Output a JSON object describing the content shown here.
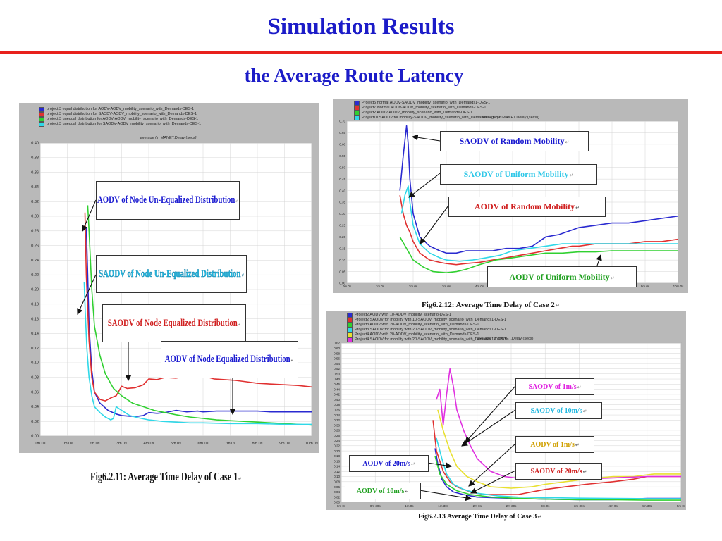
{
  "slide": {
    "title": "Simulation Results",
    "subtitle": "the Average Route Latency",
    "paragraph_mark": "↵"
  },
  "colors": {
    "title": "#1c1cc8",
    "rule": "#e8211d"
  },
  "chart_data": [
    {
      "id": "fig1",
      "type": "line",
      "caption": "Fig6.2.11: Average Time Delay of Case 1",
      "chart_title": "average (in MANET.Delay (secs))",
      "legend": [
        "project 3 equal distribution for AODV-AODV_mobility_scenario_with_Demands-DES-1",
        "project 3 equal distribution for SAODV-AODV_mobility_scenario_with_Demands-DES-1",
        "project 3 unequal distribution for AODV-AODV_mobility_scenario_with_Demands-DES-1",
        "project 3 unequal distribution for SAODV-AODV_mobility_scenario_with_Demands-DES-1"
      ],
      "x_ticks": [
        "0m 0s",
        "1m 0s",
        "2m 0s",
        "3m 0s",
        "4m 0s",
        "5m 0s",
        "6m 0s",
        "7m 0s",
        "8m 0s",
        "9m 0s",
        "10m 0s"
      ],
      "xlim": [
        0,
        10
      ],
      "ylim": [
        0,
        0.4
      ],
      "y_tick_step": 0.02,
      "series": [
        {
          "name": "project 3 equal distribution for AODV-AODV_mobility_scenario_with_Demands-DES-1",
          "color": "#2a2ad0",
          "x": [
            1.7,
            1.75,
            1.8,
            1.9,
            2.0,
            2.2,
            2.5,
            2.8,
            3.0,
            3.3,
            3.6,
            3.8,
            4.0,
            4.3,
            4.6,
            5.0,
            5.4,
            5.8,
            6.0,
            6.5,
            7.0,
            7.5,
            8.0,
            8.5,
            9.0,
            9.5,
            10.0
          ],
          "y": [
            0.285,
            0.22,
            0.15,
            0.09,
            0.06,
            0.045,
            0.035,
            0.03,
            0.028,
            0.027,
            0.027,
            0.028,
            0.032,
            0.031,
            0.032,
            0.035,
            0.033,
            0.034,
            0.033,
            0.034,
            0.034,
            0.034,
            0.034,
            0.033,
            0.033,
            0.033,
            0.033
          ]
        },
        {
          "name": "project 3 equal distribution for SAODV-AODV_mobility_scenario_with_Demands-DES-1",
          "color": "#e03030",
          "x": [
            1.65,
            1.7,
            1.8,
            1.9,
            2.0,
            2.2,
            2.4,
            2.6,
            2.8,
            3.0,
            3.2,
            3.5,
            3.8,
            4.0,
            4.3,
            4.6,
            5.0,
            5.3,
            5.6,
            6.0,
            6.4,
            6.8,
            7.2,
            7.6,
            8.0,
            8.5,
            9.0,
            9.5,
            10.0
          ],
          "y": [
            0.305,
            0.22,
            0.13,
            0.08,
            0.06,
            0.05,
            0.048,
            0.052,
            0.055,
            0.068,
            0.065,
            0.066,
            0.07,
            0.078,
            0.077,
            0.08,
            0.079,
            0.081,
            0.084,
            0.082,
            0.078,
            0.077,
            0.076,
            0.074,
            0.072,
            0.071,
            0.07,
            0.069,
            0.067
          ]
        },
        {
          "name": "project 3 unequal distribution for AODV-AODV_mobility_scenario_with_Demands-DES-1",
          "color": "#30d030",
          "x": [
            1.75,
            1.8,
            1.9,
            2.0,
            2.2,
            2.4,
            2.7,
            3.0,
            3.4,
            3.8,
            4.2,
            4.6,
            5.0,
            5.5,
            6.0,
            6.5,
            7.0,
            7.5,
            8.0,
            8.5,
            9.0,
            9.5,
            10.0
          ],
          "y": [
            0.315,
            0.28,
            0.2,
            0.15,
            0.11,
            0.085,
            0.065,
            0.055,
            0.045,
            0.04,
            0.035,
            0.032,
            0.029,
            0.026,
            0.024,
            0.022,
            0.021,
            0.02,
            0.019,
            0.018,
            0.017,
            0.016,
            0.015
          ]
        },
        {
          "name": "project 3 unequal distribution for SAODV-AODV_mobility_scenario_with_Demands-DES-1",
          "color": "#30d8e8",
          "x": [
            1.62,
            1.66,
            1.72,
            1.8,
            1.9,
            2.0,
            2.2,
            2.4,
            2.6,
            2.7,
            2.8,
            3.0,
            3.3,
            3.6,
            4.0,
            4.5,
            5.0,
            5.5,
            6.0,
            7.0,
            8.0,
            9.0,
            10.0
          ],
          "y": [
            0.21,
            0.17,
            0.12,
            0.08,
            0.055,
            0.04,
            0.032,
            0.026,
            0.022,
            0.024,
            0.04,
            0.035,
            0.028,
            0.025,
            0.022,
            0.02,
            0.019,
            0.018,
            0.018,
            0.017,
            0.017,
            0.016,
            0.016
          ]
        }
      ],
      "annotations": [
        {
          "text": "AODV of Node Un-Equalized Distribution",
          "color": "#1a1ad0",
          "text_color": "#1a1ad0",
          "mark_color": "#333"
        },
        {
          "text": "SAODV of Node Un-Equalized Distribution",
          "color": "#30c8e8",
          "text_color": "#20b8e0"
        },
        {
          "text": "SAODV of Node Equalized Distribution",
          "text_color": "#d02020"
        },
        {
          "text": "AODV of Node Equalized Distribution",
          "text_color": "#1a1ad0"
        }
      ]
    },
    {
      "id": "fig2",
      "type": "line",
      "caption": "Fig6.2.12: Average Time Delay of Case 2",
      "chart_title": "average (in MANET.Delay (secs))",
      "legend": [
        "Project5 normal AODV-SAODV_mobility_scenario_with_Demands1-DES-1",
        "Project7 Normal AODV-AODV_mobility_scenario_with_Demands-DES-1",
        "Project2 AODV-AODV_mobility_scenario_with_Demands-DES-1",
        "Project10 SAODV for mobility-SAODV_mobility_scenario_with_Demands1-DES-1"
      ],
      "x_ticks": [
        "0m 0s",
        "1m 0s",
        "2m 0s",
        "3m 0s",
        "4m 0s",
        "5m 0s",
        "6m 0s",
        "7m 0s",
        "8m 0s",
        "9m 0s",
        "10m 0s"
      ],
      "xlim": [
        0,
        10
      ],
      "ylim": [
        0,
        0.7
      ],
      "y_tick_step": 0.05,
      "series": [
        {
          "name": "Project5 normal AODV-SAODV_mobility_scenario_with_Demands1-DES-1",
          "color": "#2a2ad0",
          "x": [
            1.6,
            1.7,
            1.8,
            1.85,
            1.9,
            2.0,
            2.2,
            2.5,
            2.8,
            3.0,
            3.3,
            3.6,
            4.0,
            4.4,
            4.8,
            5.2,
            5.6,
            6.0,
            6.4,
            6.8,
            7.0,
            7.5,
            8.0,
            8.5,
            9.0,
            9.5,
            10.0
          ],
          "y": [
            0.4,
            0.55,
            0.68,
            0.6,
            0.45,
            0.3,
            0.2,
            0.16,
            0.14,
            0.13,
            0.13,
            0.14,
            0.14,
            0.14,
            0.15,
            0.15,
            0.16,
            0.2,
            0.21,
            0.23,
            0.24,
            0.25,
            0.26,
            0.26,
            0.27,
            0.28,
            0.29
          ]
        },
        {
          "name": "Project7 Normal AODV-AODV_mobility_scenario_with_Demands-DES-1",
          "color": "#e03030",
          "x": [
            1.6,
            1.7,
            1.8,
            1.9,
            2.0,
            2.2,
            2.5,
            2.8,
            3.0,
            3.3,
            3.6,
            4.0,
            4.4,
            4.8,
            5.2,
            5.6,
            6.0,
            6.4,
            6.8,
            7.0,
            7.5,
            8.0,
            8.5,
            9.0,
            9.5,
            10.0
          ],
          "y": [
            0.38,
            0.3,
            0.25,
            0.22,
            0.18,
            0.13,
            0.1,
            0.09,
            0.085,
            0.08,
            0.085,
            0.09,
            0.1,
            0.11,
            0.12,
            0.13,
            0.14,
            0.15,
            0.16,
            0.16,
            0.17,
            0.17,
            0.17,
            0.18,
            0.18,
            0.19
          ]
        },
        {
          "name": "Project2 AODV-AODV_mobility_scenario_with_Demands-DES-1",
          "color": "#30d030",
          "x": [
            1.6,
            1.8,
            2.0,
            2.3,
            2.6,
            3.0,
            3.3,
            3.6,
            4.0,
            4.5,
            5.0,
            5.5,
            6.0,
            6.5,
            7.0,
            7.5,
            8.0,
            8.5,
            9.0,
            9.5,
            10.0
          ],
          "y": [
            0.2,
            0.15,
            0.1,
            0.07,
            0.05,
            0.045,
            0.05,
            0.06,
            0.08,
            0.1,
            0.11,
            0.12,
            0.13,
            0.13,
            0.135,
            0.135,
            0.14,
            0.14,
            0.14,
            0.14,
            0.14
          ]
        },
        {
          "name": "Project10 SAODV for mobility-SAODV_mobility_scenario_with_Demands1-DES-1",
          "color": "#30d8e8",
          "x": [
            1.65,
            1.75,
            1.85,
            1.9,
            2.0,
            2.2,
            2.5,
            2.8,
            3.0,
            3.4,
            3.8,
            4.2,
            4.6,
            5.0,
            5.5,
            6.0,
            6.5,
            7.0,
            7.5,
            8.0,
            8.5,
            9.0,
            9.5,
            10.0
          ],
          "y": [
            0.3,
            0.38,
            0.42,
            0.35,
            0.25,
            0.17,
            0.13,
            0.11,
            0.1,
            0.095,
            0.1,
            0.11,
            0.12,
            0.14,
            0.15,
            0.16,
            0.17,
            0.17,
            0.17,
            0.17,
            0.17,
            0.17,
            0.17,
            0.17
          ]
        }
      ],
      "annotations": [
        {
          "text": "SAODV of Random Mobility",
          "text_color": "#1a1ad0"
        },
        {
          "text": "SAODV of Uniform Mobility",
          "text_color": "#30c8e8"
        },
        {
          "text": "AODV of Random Mobility",
          "text_color": "#d02020"
        },
        {
          "text": "AODV of Uniform Mobility",
          "text_color": "#20a020"
        }
      ]
    },
    {
      "id": "fig3",
      "type": "line",
      "caption": "Fig6.2.13 Average Time Delay of Case 3",
      "chart_title": "average (in MANET.Delay (secs))",
      "legend": [
        "Project2 AODV with 10-AODV_mobility_scenario-DES-1",
        "Project2 SAODV for mobility with 10-SAODV_mobility_scenario_with_Demands1-DES-1",
        "Project3 AODV with 20-AODV_mobility_scenario_with_Demands-DES-1",
        "Project3 SAODV for mobility with 20-SAODV_mobility_scenario_with_Demands1-DES-1",
        "Project4 AODV with 20-AODV_mobility_scenario_with_Demands-DES-1",
        "Project4 SAODV for mobility with 20-SAODV_mobility_scenario_with_Demands1-DES-1"
      ],
      "x_ticks": [
        "0m 0s",
        "0m 30s",
        "1m 0s",
        "1m 30s",
        "2m 0s",
        "2m 30s",
        "3m 0s",
        "3m 30s",
        "4m 0s",
        "4m 30s",
        "5m 0s"
      ],
      "xlim": [
        0,
        5
      ],
      "ylim": [
        0,
        0.62
      ],
      "y_tick_step": 0.02,
      "series": [
        {
          "name": "Project2 AODV with 10-AODV_mobility_scenario-DES-1",
          "color": "#2a2ad0",
          "x": [
            1.38,
            1.42,
            1.48,
            1.55,
            1.65,
            1.8,
            2.0,
            2.5,
            3.0,
            3.5,
            4.0,
            4.5,
            5.0
          ],
          "y": [
            0.21,
            0.15,
            0.09,
            0.06,
            0.04,
            0.03,
            0.02,
            0.015,
            0.012,
            0.01,
            0.01,
            0.015,
            0.015
          ]
        },
        {
          "name": "Project2 SAODV for mobility with 10-SAODV_mobility_scenario_with_Demands1-DES-1",
          "color": "#e03030",
          "x": [
            1.35,
            1.4,
            1.5,
            1.6,
            1.7,
            1.9,
            2.1,
            2.3,
            2.6,
            2.8,
            3.0,
            3.3,
            3.6,
            4.0,
            4.3,
            4.5,
            4.8,
            5.0
          ],
          "y": [
            0.32,
            0.2,
            0.12,
            0.08,
            0.06,
            0.04,
            0.03,
            0.03,
            0.03,
            0.04,
            0.05,
            0.06,
            0.07,
            0.08,
            0.09,
            0.1,
            0.1,
            0.1
          ]
        },
        {
          "name": "Project3 AODV with 20-AODV_mobility_scenario_with_Demands-DES-1",
          "color": "#30d030",
          "x": [
            1.38,
            1.45,
            1.55,
            1.7,
            1.9,
            2.2,
            2.6,
            3.0,
            3.5,
            4.0,
            4.5,
            5.0
          ],
          "y": [
            0.18,
            0.11,
            0.07,
            0.045,
            0.03,
            0.02,
            0.015,
            0.012,
            0.01,
            0.01,
            0.008,
            0.008
          ]
        },
        {
          "name": "Project3 SAODV for mobility with 20-SAODV_mobility_scenario_with_Demands1-DES-1",
          "color": "#30d8e8",
          "x": [
            1.4,
            1.48,
            1.55,
            1.65,
            1.8,
            2.0,
            2.3,
            2.6,
            3.0,
            3.5,
            4.0,
            4.5,
            5.0
          ],
          "y": [
            0.25,
            0.17,
            0.11,
            0.07,
            0.05,
            0.035,
            0.025,
            0.02,
            0.018,
            0.016,
            0.015,
            0.014,
            0.014
          ]
        },
        {
          "name": "Project4 AODV with 20-AODV_mobility_scenario_with_Demands-DES-1",
          "color": "#e8e030",
          "x": [
            1.42,
            1.5,
            1.6,
            1.7,
            1.85,
            2.0,
            2.2,
            2.5,
            2.8,
            3.0,
            3.3,
            3.6,
            4.0,
            4.3,
            4.6,
            5.0
          ],
          "y": [
            0.36,
            0.28,
            0.2,
            0.14,
            0.1,
            0.08,
            0.06,
            0.055,
            0.06,
            0.07,
            0.08,
            0.09,
            0.1,
            0.1,
            0.11,
            0.11
          ]
        },
        {
          "name": "Project4 SAODV for mobility with 20-SAODV_mobility_scenario_with_Demands1-DES-1",
          "color": "#e030e0",
          "x": [
            1.4,
            1.45,
            1.5,
            1.55,
            1.6,
            1.65,
            1.7,
            1.8,
            1.9,
            2.0,
            2.2,
            2.4,
            2.7,
            3.0,
            3.5,
            4.0,
            4.5,
            5.0
          ],
          "y": [
            0.4,
            0.44,
            0.3,
            0.42,
            0.52,
            0.45,
            0.36,
            0.28,
            0.22,
            0.17,
            0.12,
            0.1,
            0.09,
            0.09,
            0.09,
            0.095,
            0.1,
            0.1
          ]
        }
      ],
      "annotations": [
        {
          "text": "SAODV of 1m/s",
          "text_color": "#e020e0"
        },
        {
          "text": "SAODV of 10m/s",
          "text_color": "#20b8e0"
        },
        {
          "text": "AODV of 1m/s",
          "text_color": "#d0a000"
        },
        {
          "text": "SAODV of 20m/s",
          "text_color": "#d02020"
        },
        {
          "text": "AODV of 20m/s",
          "text_color": "#1a1ad0"
        },
        {
          "text": "AODV of 10m/s",
          "text_color": "#20a020"
        }
      ]
    }
  ]
}
